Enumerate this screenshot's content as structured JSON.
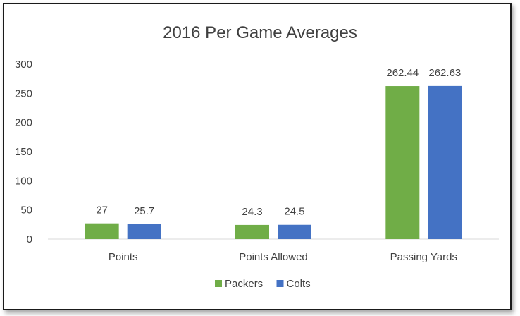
{
  "chart_data": {
    "type": "bar",
    "title": "2016 Per Game Averages",
    "categories": [
      "Points",
      "Points Allowed",
      "Passing Yards"
    ],
    "series": [
      {
        "name": "Packers",
        "color": "#70ad47",
        "values": [
          27,
          24.3,
          262.44
        ],
        "labels": [
          "27",
          "24.3",
          "262.44"
        ]
      },
      {
        "name": "Colts",
        "color": "#4472c4",
        "values": [
          25.7,
          24.5,
          262.63
        ],
        "labels": [
          "25.7",
          "24.5",
          "262.63"
        ]
      }
    ],
    "ylim": [
      0,
      300
    ],
    "yticks": [
      0,
      50,
      100,
      150,
      200,
      250,
      300
    ],
    "ytick_labels": [
      "0",
      "50",
      "100",
      "150",
      "200",
      "250",
      "300"
    ],
    "grid": false,
    "legend_position": "bottom",
    "xlabel": "",
    "ylabel": ""
  }
}
